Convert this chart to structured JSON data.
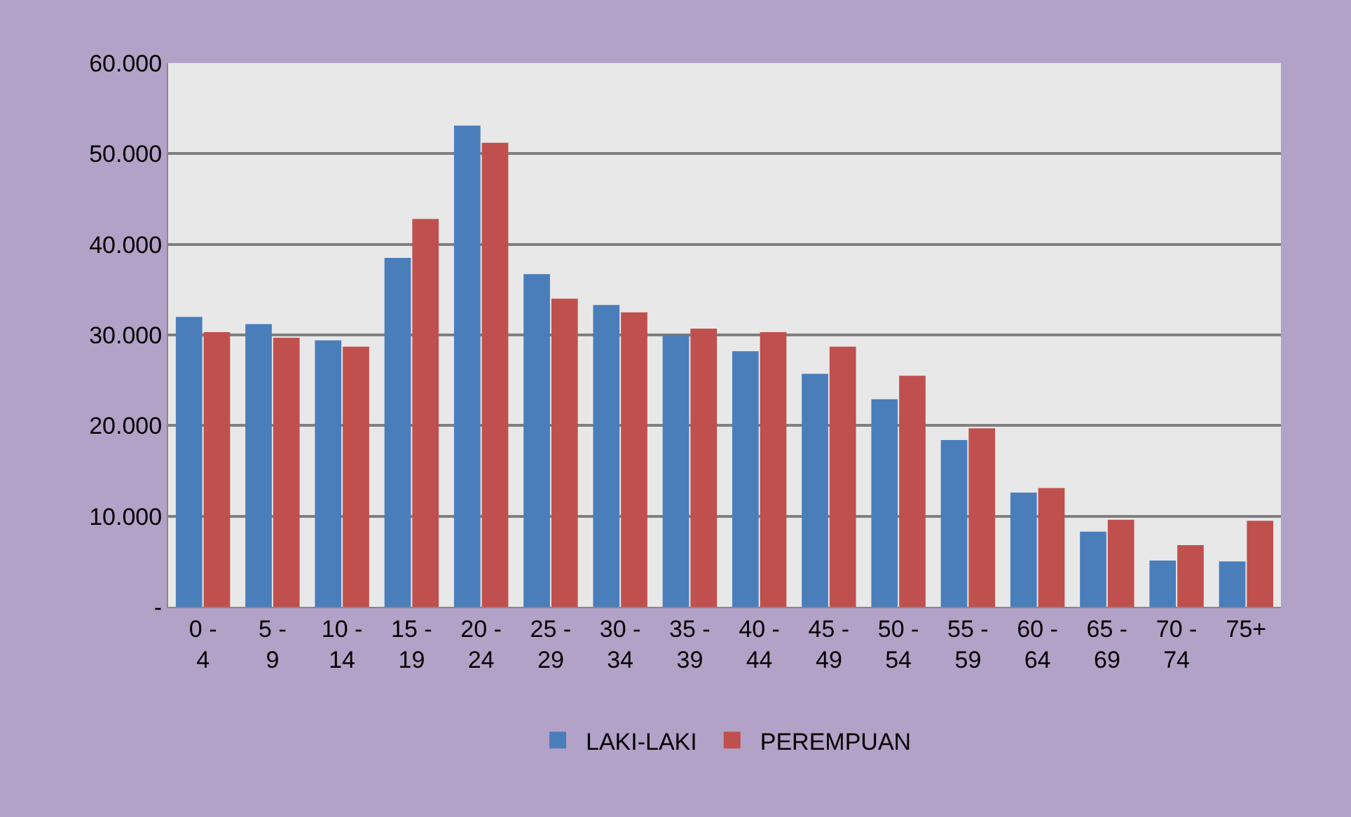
{
  "chart_data": {
    "type": "bar",
    "categories": [
      "0 - 4",
      "5 - 9",
      "10 - 14",
      "15 - 19",
      "20 - 24",
      "25 - 29",
      "30 - 34",
      "35 - 39",
      "40 - 44",
      "45 - 49",
      "50 - 54",
      "55 - 59",
      "60 - 64",
      "65 - 69",
      "70 - 74",
      "75+"
    ],
    "series": [
      {
        "name": "LAKI-LAKI",
        "color": "#4a7ebb",
        "values": [
          32000,
          31200,
          29400,
          38500,
          53100,
          36700,
          33300,
          30000,
          28200,
          25700,
          22900,
          18400,
          12600,
          8300,
          5100,
          5000
        ]
      },
      {
        "name": "PEREMPUAN",
        "color": "#c0504d",
        "values": [
          30300,
          29700,
          28700,
          42800,
          51200,
          34000,
          32500,
          30700,
          30300,
          28700,
          25500,
          19700,
          13100,
          9600,
          6800,
          9500
        ]
      }
    ],
    "ylim": [
      0,
      60000
    ],
    "yticks": [
      {
        "value": 0,
        "label": "-"
      },
      {
        "value": 10000,
        "label": "10.000"
      },
      {
        "value": 20000,
        "label": "20.000"
      },
      {
        "value": 30000,
        "label": "30.000"
      },
      {
        "value": 40000,
        "label": "40.000"
      },
      {
        "value": 50000,
        "label": "50.000"
      },
      {
        "value": 60000,
        "label": "60.000"
      }
    ],
    "grid": "y",
    "legend": "bottom"
  }
}
